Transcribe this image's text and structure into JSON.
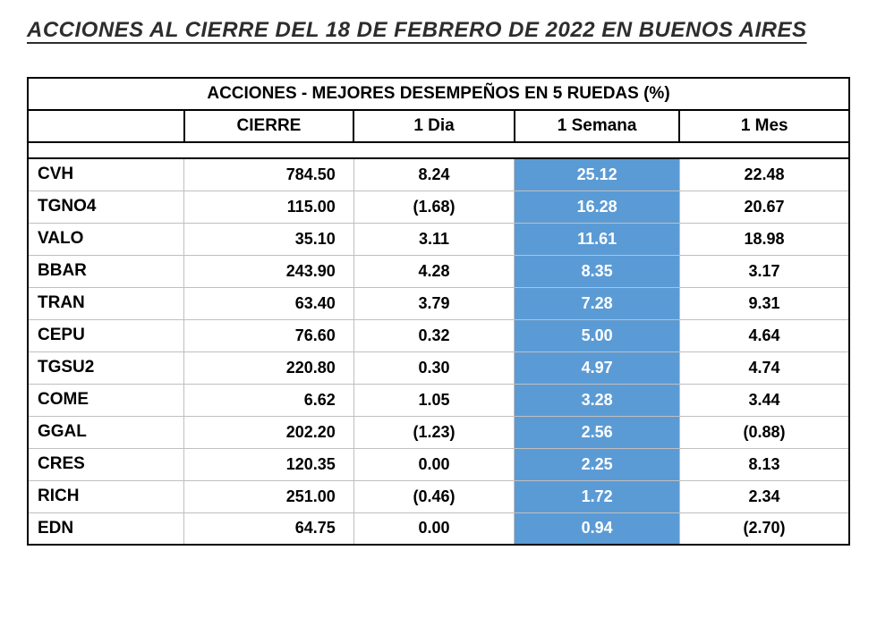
{
  "page_title": "ACCIONES AL CIERRE DEL 18 DE FEBRERO DE 2022  EN BUENOS AIRES",
  "table": {
    "title": "ACCIONES   - MEJORES DESEMPEÑOS EN 5 RUEDAS (%)",
    "columns": [
      "",
      "CIERRE",
      "1 Dia",
      "1 Semana",
      "1 Mes"
    ],
    "highlight_column_index": 3,
    "highlight_bg": "#5b9bd5",
    "highlight_fg": "#ffffff",
    "border_color": "#000000",
    "grid_color": "#bfbfbf",
    "text_color": "#000000",
    "font_family": "Verdana",
    "header_fontsize": 19,
    "cell_fontsize": 18,
    "rows": [
      {
        "ticker": "CVH",
        "cierre": "784.50",
        "dia": "8.24",
        "semana": "25.12",
        "mes": "22.48"
      },
      {
        "ticker": "TGNO4",
        "cierre": "115.00",
        "dia": "(1.68)",
        "semana": "16.28",
        "mes": "20.67"
      },
      {
        "ticker": "VALO",
        "cierre": "35.10",
        "dia": "3.11",
        "semana": "11.61",
        "mes": "18.98"
      },
      {
        "ticker": "BBAR",
        "cierre": "243.90",
        "dia": "4.28",
        "semana": "8.35",
        "mes": "3.17"
      },
      {
        "ticker": "TRAN",
        "cierre": "63.40",
        "dia": "3.79",
        "semana": "7.28",
        "mes": "9.31"
      },
      {
        "ticker": "CEPU",
        "cierre": "76.60",
        "dia": "0.32",
        "semana": "5.00",
        "mes": "4.64"
      },
      {
        "ticker": "TGSU2",
        "cierre": "220.80",
        "dia": "0.30",
        "semana": "4.97",
        "mes": "4.74"
      },
      {
        "ticker": "COME",
        "cierre": "6.62",
        "dia": "1.05",
        "semana": "3.28",
        "mes": "3.44"
      },
      {
        "ticker": "GGAL",
        "cierre": "202.20",
        "dia": "(1.23)",
        "semana": "2.56",
        "mes": "(0.88)"
      },
      {
        "ticker": "CRES",
        "cierre": "120.35",
        "dia": "0.00",
        "semana": "2.25",
        "mes": "8.13"
      },
      {
        "ticker": "RICH",
        "cierre": "251.00",
        "dia": "(0.46)",
        "semana": "1.72",
        "mes": "2.34"
      },
      {
        "ticker": "EDN",
        "cierre": "64.75",
        "dia": "0.00",
        "semana": "0.94",
        "mes": "(2.70)"
      }
    ]
  }
}
